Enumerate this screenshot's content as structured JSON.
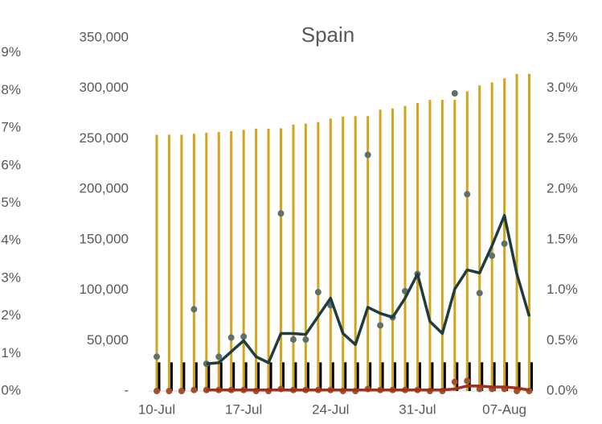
{
  "chart_data": {
    "type": "combo",
    "title": "Spain",
    "categories": [
      "10-Jul",
      null,
      null,
      null,
      null,
      null,
      null,
      "17-Jul",
      null,
      null,
      null,
      null,
      null,
      null,
      "24-Jul",
      null,
      null,
      null,
      null,
      null,
      null,
      "31-Jul",
      null,
      null,
      null,
      null,
      null,
      null,
      "07-Aug",
      null,
      null
    ],
    "ylim": [
      0,
      350000
    ],
    "yticks": [
      {
        "value": 0,
        "label": "-"
      },
      {
        "value": 50000,
        "label": "50,000"
      },
      {
        "value": 100000,
        "label": "100,000"
      },
      {
        "value": 150000,
        "label": "150,000"
      },
      {
        "value": 200000,
        "label": "200,000"
      },
      {
        "value": 250000,
        "label": "250,000"
      },
      {
        "value": 300000,
        "label": "300,000"
      },
      {
        "value": 350000,
        "label": "350,000"
      }
    ],
    "y2lim": [
      0,
      3.5
    ],
    "y2ticks": [
      {
        "value": 0,
        "label": "0.0%"
      },
      {
        "value": 0.5,
        "label": "0.5%"
      },
      {
        "value": 1,
        "label": "1.0%"
      },
      {
        "value": 1.5,
        "label": "1.5%"
      },
      {
        "value": 2,
        "label": "2.0%"
      },
      {
        "value": 2.5,
        "label": "2.5%"
      },
      {
        "value": 3,
        "label": "3.0%"
      },
      {
        "value": 3.5,
        "label": "3.5%"
      }
    ],
    "y3lim": [
      0,
      9.4
    ],
    "y3ticks": [
      {
        "value": 0,
        "label": "0%"
      },
      {
        "value": 1,
        "label": "1%"
      },
      {
        "value": 2,
        "label": "2%"
      },
      {
        "value": 3,
        "label": "3%"
      },
      {
        "value": 4,
        "label": "4%"
      },
      {
        "value": 5,
        "label": "5%"
      },
      {
        "value": 6,
        "label": "6%"
      },
      {
        "value": 7,
        "label": "7%"
      },
      {
        "value": 8,
        "label": "8%"
      },
      {
        "value": 9,
        "label": "9%"
      }
    ],
    "series": [
      {
        "type": "bar",
        "axis": "y",
        "color": "#d6a41c",
        "values": [
          253908,
          254000,
          254000,
          255000,
          256000,
          256600,
          257500,
          258800,
          260000,
          260000,
          260300,
          264000,
          265000,
          266500,
          270000,
          272000,
          272400,
          272400,
          278800,
          280000,
          282600,
          285400,
          288500,
          288500,
          288500,
          297000,
          302800,
          305800,
          309800,
          314300,
          314300
        ]
      },
      {
        "type": "bar",
        "axis": "y",
        "color": "#000000",
        "values": [
          28403,
          28406,
          28406,
          28409,
          28409,
          28413,
          28416,
          28420,
          28422,
          28422,
          28422,
          28424,
          28426,
          28428,
          28432,
          28436,
          28436,
          28436,
          28441,
          28443,
          28445,
          28445,
          28445,
          28445,
          28445,
          28472,
          28498,
          28499,
          28500,
          28503,
          28503
        ]
      },
      {
        "type": "scatter",
        "axis": "y2",
        "color": "#a0522d",
        "values": [
          0,
          0,
          0,
          0.01,
          0.01,
          0.01,
          0.01,
          0.01,
          0,
          0,
          0.02,
          0.01,
          0.01,
          0.01,
          0.01,
          0,
          0,
          0.02,
          0.01,
          0.01,
          0.01,
          0.01,
          0,
          0,
          0.09,
          0.1,
          0.02,
          0.02,
          0.02,
          0,
          0
        ]
      },
      {
        "type": "scatter",
        "axis": "y2",
        "color": "#5f706d",
        "values": [
          0.34,
          null,
          null,
          0.81,
          0.27,
          0.34,
          0.53,
          0.54,
          null,
          null,
          1.76,
          0.51,
          0.51,
          0.98,
          0.85,
          null,
          null,
          2.34,
          0.65,
          0.73,
          0.99,
          1.16,
          null,
          null,
          2.95,
          1.95,
          0.97,
          1.34,
          1.46,
          null,
          null
        ]
      },
      {
        "type": "line",
        "axis": "y2",
        "color": "#1f3d3e",
        "values": [
          null,
          null,
          null,
          null,
          0.27,
          0.28,
          0.39,
          0.5,
          0.34,
          0.28,
          0.57,
          0.57,
          0.56,
          0.74,
          0.92,
          0.57,
          0.46,
          0.83,
          0.77,
          0.73,
          0.92,
          1.16,
          0.69,
          0.57,
          1.01,
          1.2,
          1.17,
          1.44,
          1.74,
          1.16,
          0.74
        ]
      },
      {
        "type": "line",
        "axis": "y2",
        "color": "#a3301c",
        "values": [
          null,
          null,
          null,
          null,
          0.01,
          0.01,
          0.01,
          0.01,
          0.01,
          0.01,
          0.01,
          0.01,
          0.01,
          0.01,
          0.01,
          0.01,
          0.01,
          0.01,
          0.01,
          0.01,
          0.01,
          0.01,
          0.01,
          0.01,
          0.02,
          0.05,
          0.05,
          0.04,
          0.04,
          0.03,
          0.01
        ]
      }
    ]
  }
}
